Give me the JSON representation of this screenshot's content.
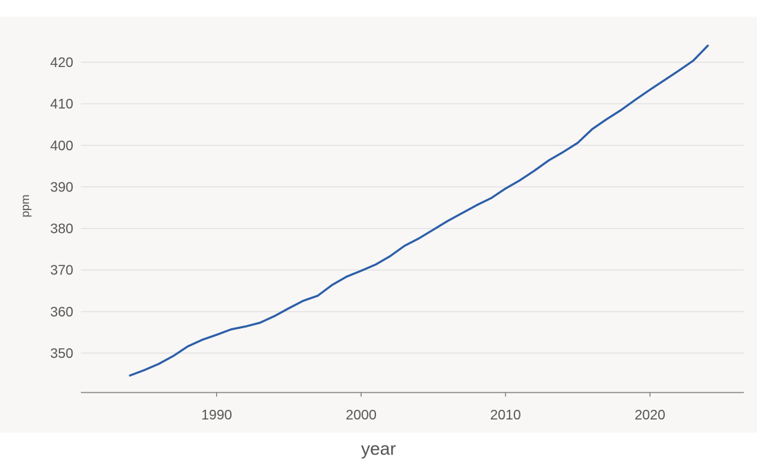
{
  "chart_data": {
    "type": "line",
    "title": "",
    "xlabel": "year",
    "ylabel": "ppm",
    "xlim": [
      1980.6,
      2026.5
    ],
    "ylim": [
      340.5,
      429
    ],
    "x_ticks": [
      1990,
      2000,
      2010,
      2020
    ],
    "y_ticks": [
      350,
      360,
      370,
      380,
      390,
      400,
      410,
      420
    ],
    "grid": "horizontal",
    "legend": "none",
    "colors": {
      "line": "#2b5ea7",
      "background": "#f8f7f6",
      "grid": "#e1e1e1",
      "axis": "#6f6f6f",
      "text": "#555555"
    },
    "series": [
      {
        "x": [
          1984,
          1985,
          1986,
          1987,
          1988,
          1989,
          1990,
          1991,
          1992,
          1993,
          1994,
          1995,
          1996,
          1997,
          1998,
          1999,
          2000,
          2001,
          2002,
          2003,
          2004,
          2005,
          2006,
          2007,
          2008,
          2009,
          2010,
          2011,
          2012,
          2013,
          2014,
          2015,
          2016,
          2017,
          2018,
          2019,
          2020,
          2021,
          2022,
          2023,
          2024
        ],
        "y": [
          344.6,
          345.9,
          347.4,
          349.3,
          351.6,
          353.2,
          354.4,
          355.7,
          356.4,
          357.3,
          358.9,
          360.8,
          362.6,
          363.8,
          366.4,
          368.4,
          369.8,
          371.3,
          373.3,
          375.8,
          377.6,
          379.7,
          381.8,
          383.7,
          385.6,
          387.3,
          389.6,
          391.6,
          393.9,
          396.4,
          398.4,
          400.6,
          403.9,
          406.3,
          408.5,
          411.0,
          413.4,
          415.7,
          418.0,
          420.4,
          424.0
        ]
      }
    ]
  }
}
